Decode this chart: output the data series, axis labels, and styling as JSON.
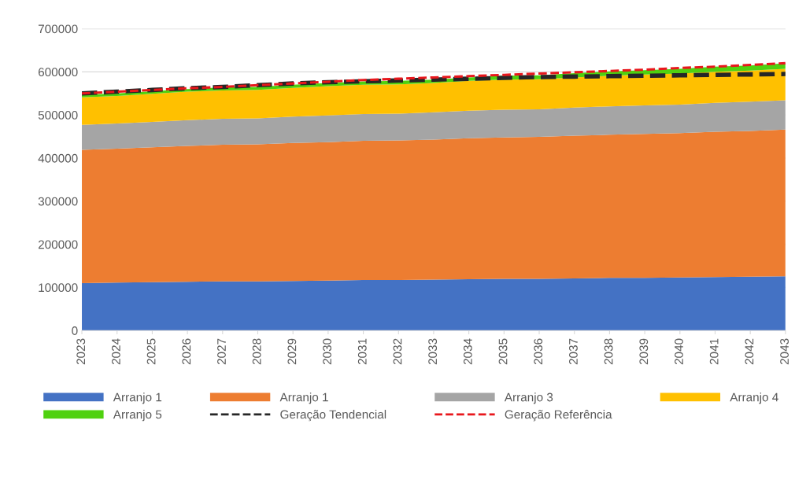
{
  "chart_data": {
    "type": "area",
    "stacked": true,
    "categories": [
      "2023",
      "2024",
      "2025",
      "2026",
      "2027",
      "2028",
      "2029",
      "2030",
      "2031",
      "2032",
      "2033",
      "2034",
      "2035",
      "2036",
      "2037",
      "2038",
      "2039",
      "2040",
      "2041",
      "2042",
      "2043"
    ],
    "ylim": [
      0,
      700000
    ],
    "yticks": [
      0,
      100000,
      200000,
      300000,
      400000,
      500000,
      600000,
      700000
    ],
    "grid": "y",
    "legend": "bottom",
    "series": [
      {
        "name": "Arranjo 1",
        "color": "#4472c4",
        "values": [
          110000,
          111000,
          112000,
          113000,
          114000,
          114000,
          115000,
          116000,
          117000,
          117000,
          118000,
          119000,
          120000,
          120000,
          121000,
          122000,
          122000,
          123000,
          124000,
          125000,
          126000
        ]
      },
      {
        "name": "Arranjo 1",
        "color": "#ed7d31",
        "values": [
          309000,
          311000,
          313000,
          315000,
          317000,
          318000,
          320000,
          321000,
          323000,
          324000,
          325000,
          327000,
          328000,
          329000,
          331000,
          332000,
          334000,
          335000,
          337000,
          338000,
          340000
        ]
      },
      {
        "name": "Arranjo 3",
        "color": "#a5a5a5",
        "values": [
          58000,
          58000,
          59000,
          60000,
          60000,
          60000,
          61000,
          62000,
          62000,
          62000,
          63000,
          64000,
          64000,
          64000,
          65000,
          66000,
          66000,
          66000,
          67000,
          68000,
          68000
        ]
      },
      {
        "name": "Arranjo 4",
        "color": "#ffc000",
        "values": [
          64000,
          64000,
          65000,
          66000,
          66000,
          66000,
          67000,
          68000,
          68000,
          68000,
          68000,
          69000,
          70000,
          70000,
          70000,
          71000,
          72000,
          72000,
          72000,
          72000,
          73000
        ]
      },
      {
        "name": "Arranjo 5",
        "color": "#4fd10f",
        "values": [
          6000,
          6000,
          6000,
          6000,
          7000,
          7000,
          7000,
          7000,
          8000,
          8000,
          8000,
          8000,
          9000,
          9000,
          10000,
          10000,
          10000,
          11000,
          12000,
          12000,
          13000
        ]
      },
      {
        "name": "Geração Tendencial",
        "type": "line",
        "line_style": "dashed",
        "color": "#262626",
        "values": [
          550000,
          554000,
          558000,
          562000,
          565000,
          569000,
          573000,
          576000,
          578000,
          580000,
          582000,
          584000,
          586000,
          588000,
          589000,
          590000,
          591000,
          592000,
          593000,
          594000,
          595000
        ]
      },
      {
        "name": "Geração Referência",
        "type": "line",
        "line_style": "dashed",
        "color": "#e8171c",
        "values": [
          550000,
          554000,
          558000,
          562000,
          565000,
          569000,
          573000,
          577000,
          581000,
          584000,
          587000,
          590000,
          593000,
          596000,
          599000,
          602000,
          605000,
          609000,
          612000,
          616000,
          620000
        ]
      }
    ]
  }
}
